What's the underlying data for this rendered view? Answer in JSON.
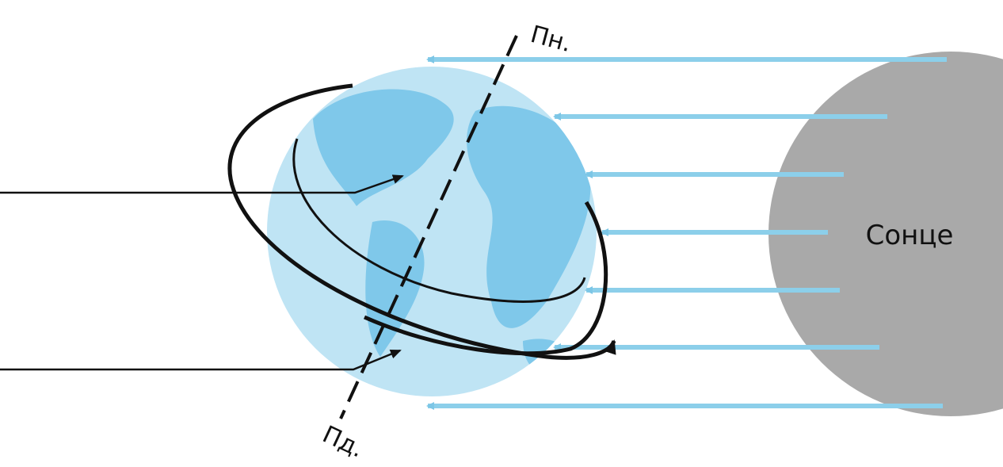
{
  "labels": {
    "north": "Пн.",
    "south": "Пд.",
    "sun": "Сонце"
  }
}
